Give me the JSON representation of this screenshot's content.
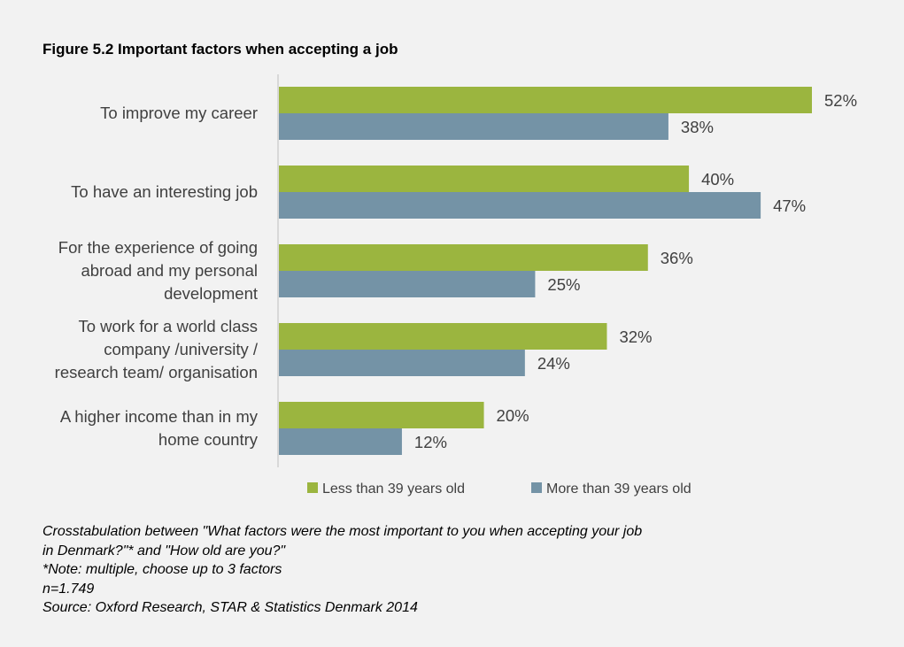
{
  "figure_title": "Figure 5.2 Important factors when accepting a job",
  "chart_data": {
    "type": "bar",
    "orientation": "horizontal",
    "categories": [
      "To improve my career",
      "To have an interesting job",
      "For the experience of going abroad and my personal development",
      "To work for a world class company /university / research team/ organisation",
      "A higher income than in my home country"
    ],
    "category_lines": [
      [
        "To improve my career"
      ],
      [
        "To have an interesting job"
      ],
      [
        "For the experience of going",
        "abroad and my personal",
        "development"
      ],
      [
        "To work for a world class",
        "company /university /",
        "research team/ organisation"
      ],
      [
        "A higher income than in my",
        "home country"
      ]
    ],
    "series": [
      {
        "name": "Less than 39 years old",
        "color": "#9bb53f",
        "values": [
          52,
          40,
          36,
          32,
          20
        ]
      },
      {
        "name": "More than 39 years old",
        "color": "#7493a6",
        "values": [
          38,
          47,
          25,
          24,
          12
        ]
      }
    ],
    "value_suffix": "%",
    "xlim": [
      0,
      52
    ],
    "grid": false,
    "legend_position": "bottom"
  },
  "notes": [
    "Crosstabulation between \"What factors were the most important to you when accepting your job",
    "in Denmark?\"* and \"How old are you?\"",
    "*Note: multiple, choose up to 3 factors",
    "n=1.749",
    "Source: Oxford Research, STAR & Statistics Denmark 2014"
  ]
}
